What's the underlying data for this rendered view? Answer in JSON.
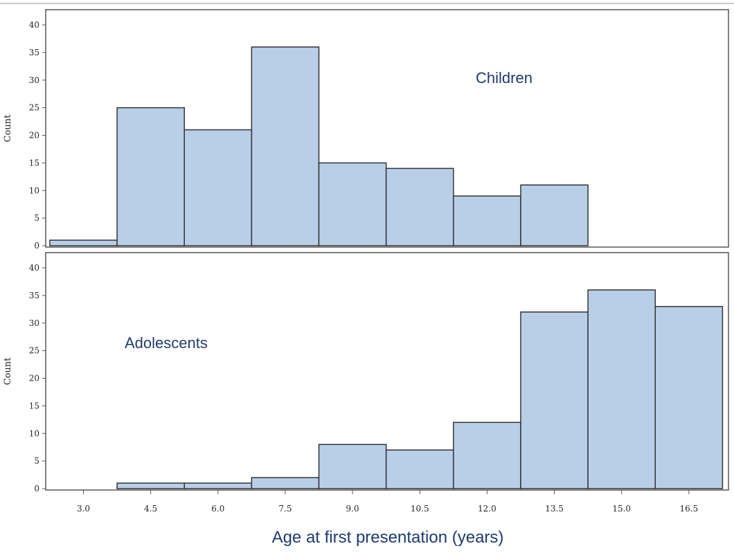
{
  "chart_data": {
    "type": "bar",
    "xlabel": "Age at first presentation (years)",
    "x_ticks": [
      "3.0",
      "4.5",
      "6.0",
      "7.5",
      "9.0",
      "10.5",
      "12.0",
      "13.5",
      "15.0",
      "16.5"
    ],
    "bin_width": 1.5,
    "panels": [
      {
        "label": "Children",
        "ylabel": "Count",
        "ylim": [
          0,
          40
        ],
        "y_ticks": [
          "0",
          "5",
          "10",
          "15",
          "20",
          "25",
          "30",
          "35",
          "40"
        ],
        "bins": [
          {
            "center": 3.0,
            "count": 1
          },
          {
            "center": 4.5,
            "count": 25
          },
          {
            "center": 6.0,
            "count": 21
          },
          {
            "center": 7.5,
            "count": 36
          },
          {
            "center": 9.0,
            "count": 15
          },
          {
            "center": 10.5,
            "count": 14
          },
          {
            "center": 12.0,
            "count": 9
          },
          {
            "center": 13.5,
            "count": 11
          }
        ]
      },
      {
        "label": "Adolescents",
        "ylabel": "Count",
        "ylim": [
          0,
          40
        ],
        "y_ticks": [
          "0",
          "5",
          "10",
          "15",
          "20",
          "25",
          "30",
          "35",
          "40"
        ],
        "bins": [
          {
            "center": 4.5,
            "count": 1
          },
          {
            "center": 6.0,
            "count": 1
          },
          {
            "center": 7.5,
            "count": 2
          },
          {
            "center": 9.0,
            "count": 8
          },
          {
            "center": 10.5,
            "count": 7
          },
          {
            "center": 12.0,
            "count": 12
          },
          {
            "center": 13.5,
            "count": 32
          },
          {
            "center": 15.0,
            "count": 36
          },
          {
            "center": 16.5,
            "count": 33
          }
        ]
      }
    ]
  }
}
